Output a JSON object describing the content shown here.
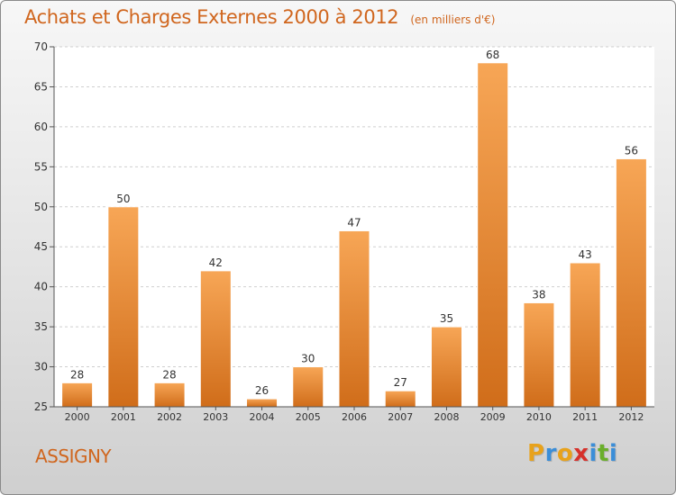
{
  "title": "Achats et Charges Externes 2000 à 2012",
  "unit_label": "(en milliers d'€)",
  "town": "ASSIGNY",
  "brand": {
    "text": "Proxiti",
    "letter_colors": [
      "#e8a21b",
      "#3b8ed8",
      "#e8a21b",
      "#d6312b",
      "#3b8ed8",
      "#6aae2b",
      "#3b8ed8"
    ]
  },
  "colors": {
    "accent": "#d0661e",
    "bar_light": "#f7a656",
    "bar_dark": "#d06d1a"
  },
  "chart_data": {
    "type": "bar",
    "categories": [
      "2000",
      "2001",
      "2002",
      "2003",
      "2004",
      "2005",
      "2006",
      "2007",
      "2008",
      "2009",
      "2010",
      "2011",
      "2012"
    ],
    "values": [
      28,
      50,
      28,
      42,
      26,
      30,
      47,
      27,
      35,
      68,
      38,
      43,
      56
    ],
    "ylim": [
      25,
      70
    ],
    "yticks": [
      25,
      30,
      35,
      40,
      45,
      50,
      55,
      60,
      65,
      70
    ],
    "grid": true,
    "data_labels": true
  }
}
